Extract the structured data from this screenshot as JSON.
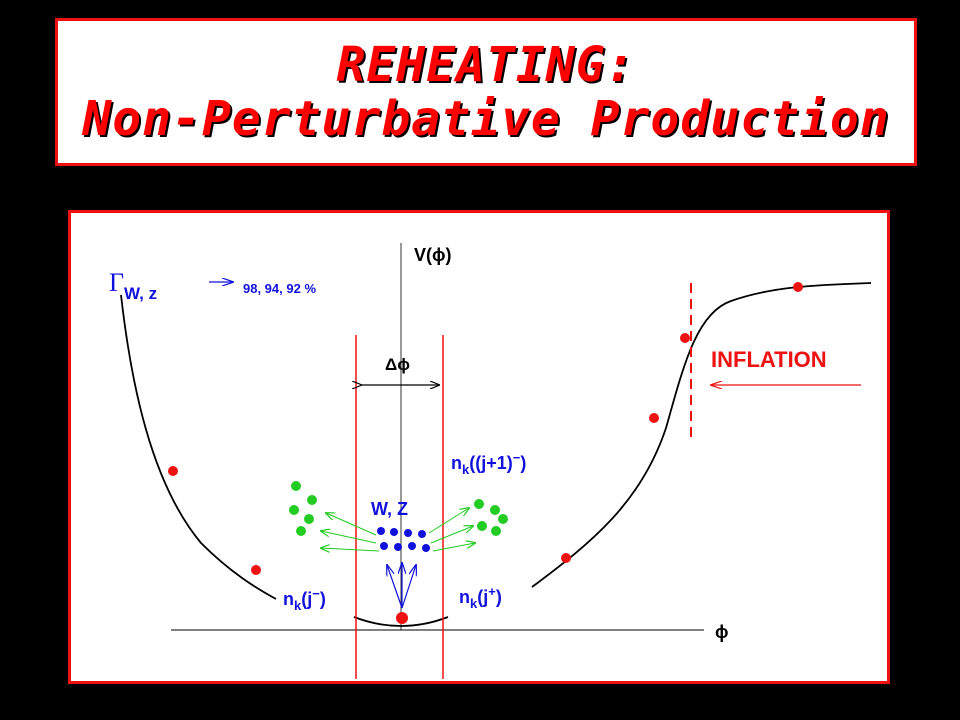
{
  "title": {
    "line1": "REHEATING:",
    "line2": "Non-Perturbative Production"
  },
  "diagram": {
    "y_axis_label": "V(ϕ)",
    "x_axis_label": "ϕ",
    "gamma_label": "Γ",
    "gamma_subscript": "W, z",
    "gamma_values": "98, 94, 92 %",
    "delta_phi_label": "Δϕ",
    "inflation_label": "INFLATION",
    "wz_label": "W, Z",
    "nk_minus": {
      "base": "n",
      "sub": "k",
      "arg": "(j",
      "sup": "−",
      "close": ")"
    },
    "nk_plus": {
      "base": "n",
      "sub": "k",
      "arg": "(j",
      "sup": "+",
      "close": ")"
    },
    "nk_next": {
      "base": "n",
      "sub": "k",
      "arg": "((j+1)",
      "sup": "−",
      "close": ")"
    },
    "colors": {
      "curve": "#000000",
      "red": "#ee1111",
      "blue": "#1111dd",
      "green": "#22cc22",
      "title": "#ff0000"
    }
  }
}
